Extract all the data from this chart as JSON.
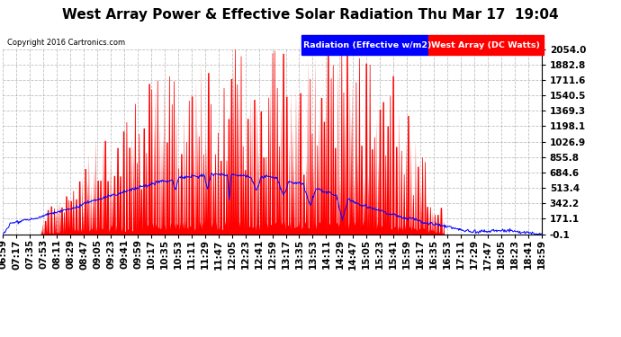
{
  "title": "West Array Power & Effective Solar Radiation Thu Mar 17  19:04",
  "copyright": "Copyright 2016 Cartronics.com",
  "legend_blue": "Radiation (Effective w/m2)",
  "legend_red": "West Array (DC Watts)",
  "ymin": -0.1,
  "ymax": 2054.0,
  "yticks": [
    2054.0,
    1882.8,
    1711.6,
    1540.5,
    1369.3,
    1198.1,
    1026.9,
    855.8,
    684.6,
    513.4,
    342.2,
    171.1,
    -0.1
  ],
  "bg_color": "#ffffff",
  "plot_bg_color": "#ffffff",
  "grid_color": "#b0b0b0",
  "red_color": "#ff0000",
  "blue_color": "#0000ff",
  "title_fontsize": 11,
  "tick_fontsize": 7.5,
  "x_tick_rotation": 90,
  "x_ticks": [
    "06:59",
    "07:17",
    "07:35",
    "07:53",
    "08:11",
    "08:29",
    "08:47",
    "09:05",
    "09:23",
    "09:41",
    "09:59",
    "10:17",
    "10:35",
    "10:53",
    "11:11",
    "11:29",
    "11:47",
    "12:05",
    "12:23",
    "12:41",
    "12:59",
    "13:17",
    "13:35",
    "13:53",
    "14:11",
    "14:29",
    "14:47",
    "15:05",
    "15:23",
    "15:41",
    "15:59",
    "16:17",
    "16:35",
    "16:53",
    "17:11",
    "17:29",
    "17:47",
    "18:05",
    "18:23",
    "18:41",
    "18:59"
  ]
}
